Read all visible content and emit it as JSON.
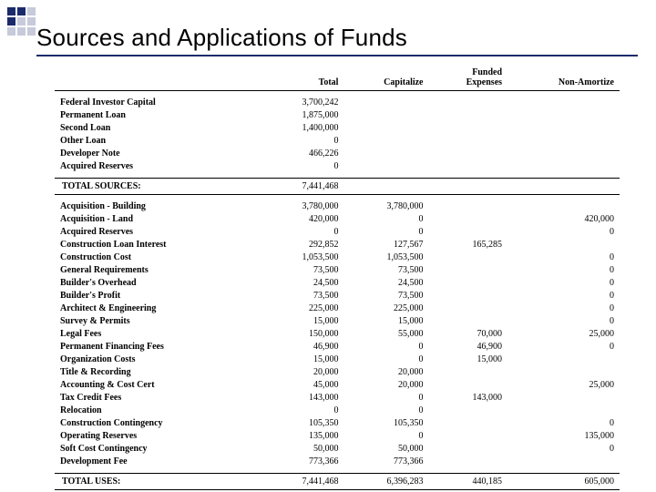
{
  "title": "Sources and Applications of Funds",
  "columns": [
    "Total",
    "Capitalize",
    "Funded Expenses",
    "Non-Amortize"
  ],
  "sources": {
    "rows": [
      {
        "label": "Federal Investor Capital",
        "values": [
          "3,700,242",
          "",
          "",
          ""
        ]
      },
      {
        "label": "Permanent Loan",
        "values": [
          "1,875,000",
          "",
          "",
          ""
        ]
      },
      {
        "label": "Second Loan",
        "values": [
          "1,400,000",
          "",
          "",
          ""
        ]
      },
      {
        "label": "Other Loan",
        "values": [
          "0",
          "",
          "",
          ""
        ]
      },
      {
        "label": "Developer Note",
        "values": [
          "466,226",
          "",
          "",
          ""
        ]
      },
      {
        "label": "Acquired Reserves",
        "values": [
          "0",
          "",
          "",
          ""
        ]
      }
    ],
    "total_label": "TOTAL SOURCES:",
    "total_values": [
      "7,441,468",
      "",
      "",
      ""
    ]
  },
  "uses": {
    "rows": [
      {
        "label": "Acquisition - Building",
        "values": [
          "3,780,000",
          "3,780,000",
          "",
          ""
        ]
      },
      {
        "label": "Acquisition - Land",
        "values": [
          "420,000",
          "0",
          "",
          "420,000"
        ]
      },
      {
        "label": "Acquired Reserves",
        "values": [
          "0",
          "0",
          "",
          "0"
        ]
      },
      {
        "label": "Construction Loan Interest",
        "values": [
          "292,852",
          "127,567",
          "165,285",
          ""
        ]
      },
      {
        "label": "Construction Cost",
        "values": [
          "1,053,500",
          "1,053,500",
          "",
          "0"
        ]
      },
      {
        "label": "General Requirements",
        "values": [
          "73,500",
          "73,500",
          "",
          "0"
        ]
      },
      {
        "label": "Builder's Overhead",
        "values": [
          "24,500",
          "24,500",
          "",
          "0"
        ]
      },
      {
        "label": "Builder's Profit",
        "values": [
          "73,500",
          "73,500",
          "",
          "0"
        ]
      },
      {
        "label": "Architect & Engineering",
        "values": [
          "225,000",
          "225,000",
          "",
          "0"
        ]
      },
      {
        "label": "Survey & Permits",
        "values": [
          "15,000",
          "15,000",
          "",
          "0"
        ]
      },
      {
        "label": "Legal Fees",
        "values": [
          "150,000",
          "55,000",
          "70,000",
          "25,000"
        ]
      },
      {
        "label": "Permanent Financing Fees",
        "values": [
          "46,900",
          "0",
          "46,900",
          "0"
        ]
      },
      {
        "label": "Organization Costs",
        "values": [
          "15,000",
          "0",
          "15,000",
          ""
        ]
      },
      {
        "label": "Title & Recording",
        "values": [
          "20,000",
          "20,000",
          "",
          ""
        ]
      },
      {
        "label": "Accounting & Cost Cert",
        "values": [
          "45,000",
          "20,000",
          "",
          "25,000"
        ]
      },
      {
        "label": "Tax Credit Fees",
        "values": [
          "143,000",
          "0",
          "143,000",
          ""
        ]
      },
      {
        "label": "Relocation",
        "values": [
          "0",
          "0",
          "",
          ""
        ]
      },
      {
        "label": "Construction Contingency",
        "values": [
          "105,350",
          "105,350",
          "",
          "0"
        ]
      },
      {
        "label": "Operating Reserves",
        "values": [
          "135,000",
          "0",
          "",
          "135,000"
        ]
      },
      {
        "label": "Soft Cost Contingency",
        "values": [
          "50,000",
          "50,000",
          "",
          "0"
        ]
      },
      {
        "label": "Development Fee",
        "values": [
          "773,366",
          "773,366",
          "",
          ""
        ]
      }
    ],
    "total_label": "TOTAL USES:",
    "total_values": [
      "7,441,468",
      "6,396,283",
      "440,185",
      "605,000"
    ]
  },
  "colors": {
    "accent": "#1a2a6c",
    "text": "#000000",
    "background": "#ffffff"
  },
  "fonts": {
    "title_family": "Arial",
    "title_size_pt": 20,
    "body_family": "Times New Roman",
    "body_size_pt": 8
  }
}
